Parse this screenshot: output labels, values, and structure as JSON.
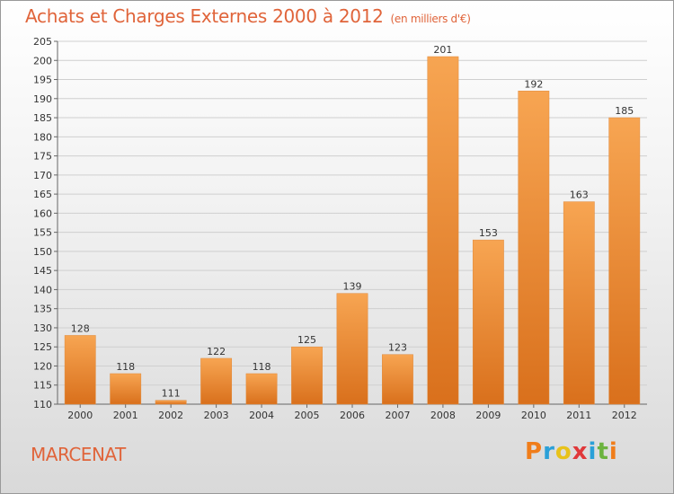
{
  "header": {
    "title": "Achats et Charges Externes 2000 à 2012",
    "unit": "(en milliers d'€)"
  },
  "footer": {
    "commune": "MARCENAT",
    "logo_letters": [
      "P",
      "r",
      "o",
      "x",
      "i",
      "t",
      "i"
    ],
    "logo_colors": [
      "#f07d1a",
      "#2aa0d8",
      "#e8c21a",
      "#e0383a",
      "#2aa0d8",
      "#6cb33f",
      "#f07d1a"
    ]
  },
  "chart_data": {
    "type": "bar",
    "categories": [
      "2000",
      "2001",
      "2002",
      "2003",
      "2004",
      "2005",
      "2006",
      "2007",
      "2008",
      "2009",
      "2010",
      "2011",
      "2012"
    ],
    "values": [
      128,
      118,
      111,
      122,
      118,
      125,
      139,
      123,
      201,
      153,
      192,
      163,
      185
    ],
    "ylim": [
      110,
      205
    ],
    "yticks": [
      110,
      115,
      120,
      125,
      130,
      135,
      140,
      145,
      150,
      155,
      160,
      165,
      170,
      175,
      180,
      185,
      190,
      195,
      200,
      205
    ],
    "grid": true,
    "bar_color": "#f0923e"
  }
}
